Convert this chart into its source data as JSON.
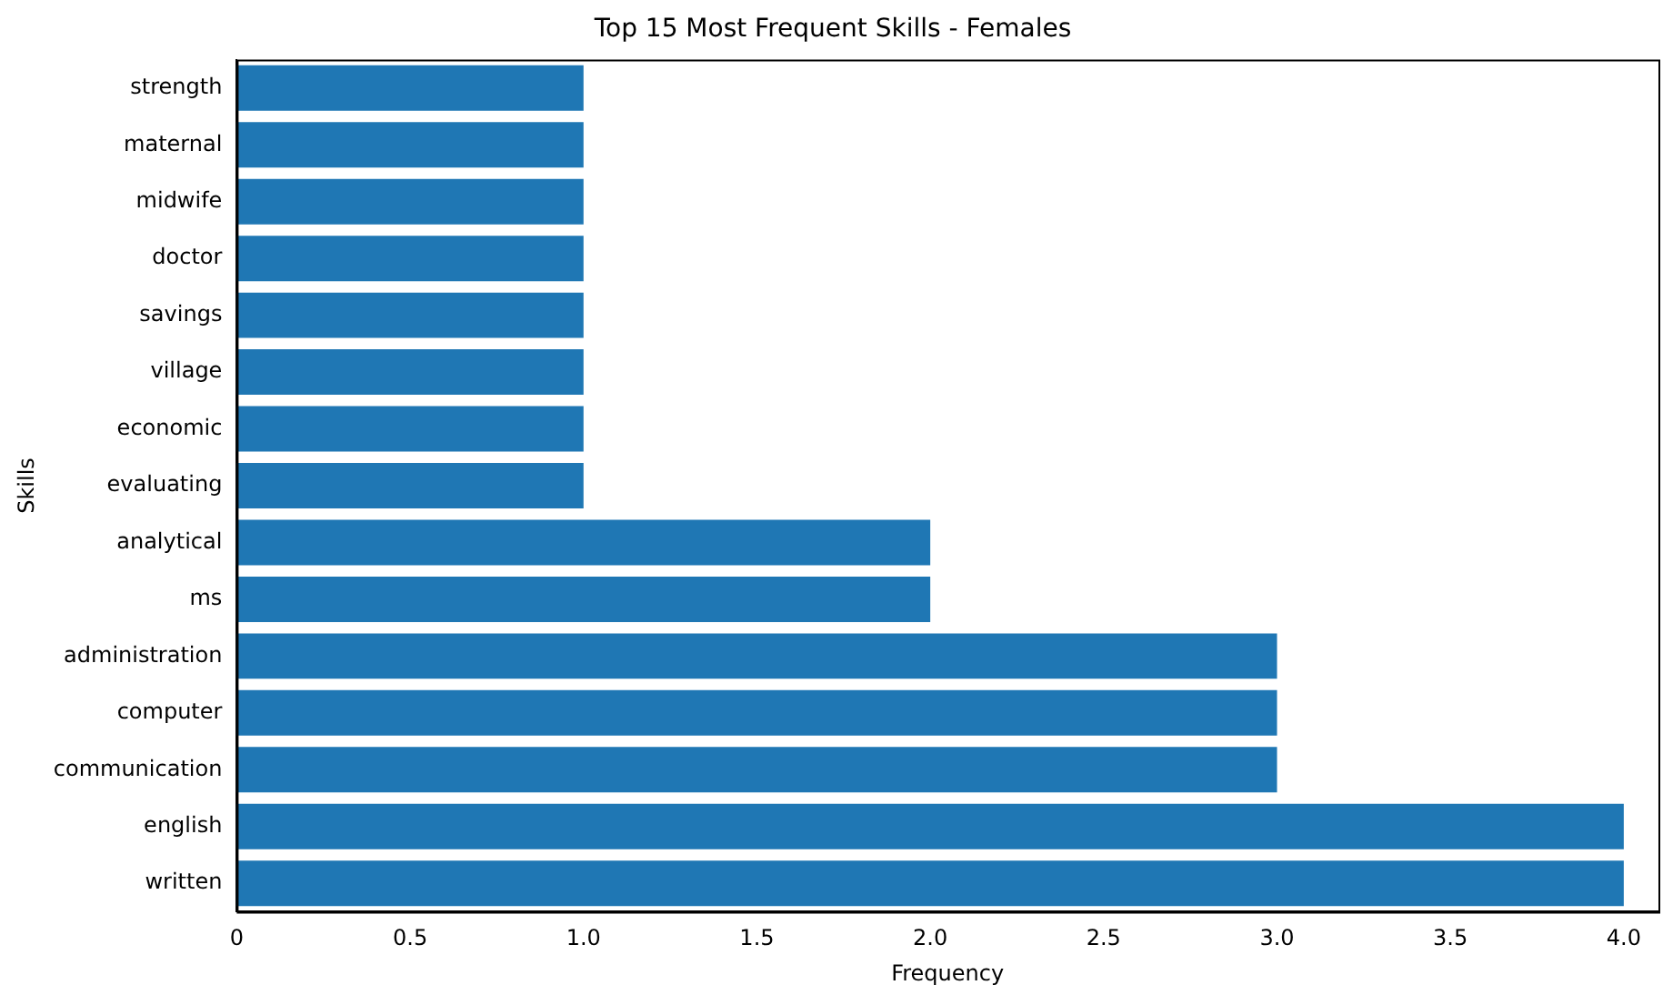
{
  "chart_data": {
    "type": "bar",
    "orientation": "horizontal",
    "title": "Top 15 Most Frequent Skills - Females",
    "xlabel": "Frequency",
    "ylabel": "Skills",
    "categories": [
      "strength",
      "maternal",
      "midwife",
      "doctor",
      "savings",
      "village",
      "economic",
      "evaluating",
      "analytical",
      "ms",
      "administration",
      "computer",
      "communication",
      "english",
      "written"
    ],
    "values": [
      1,
      1,
      1,
      1,
      1,
      1,
      1,
      1,
      2,
      2,
      3,
      3,
      3,
      4,
      4
    ],
    "color": "#1f77b4",
    "xlim": [
      0,
      4.1
    ],
    "xticks": [
      0,
      {
        "value": 0.5,
        "label": "0.5"
      },
      {
        "value": 1,
        "label": "1.0"
      },
      {
        "value": 1.5,
        "label": "1.5"
      },
      {
        "value": 2,
        "label": "2.0"
      },
      {
        "value": 2.5,
        "label": "2.5"
      },
      {
        "value": 3,
        "label": "3.0"
      },
      {
        "value": 3.5,
        "label": "3.5"
      },
      {
        "value": 4,
        "label": "4.0"
      }
    ],
    "grid": false,
    "legend": false
  }
}
